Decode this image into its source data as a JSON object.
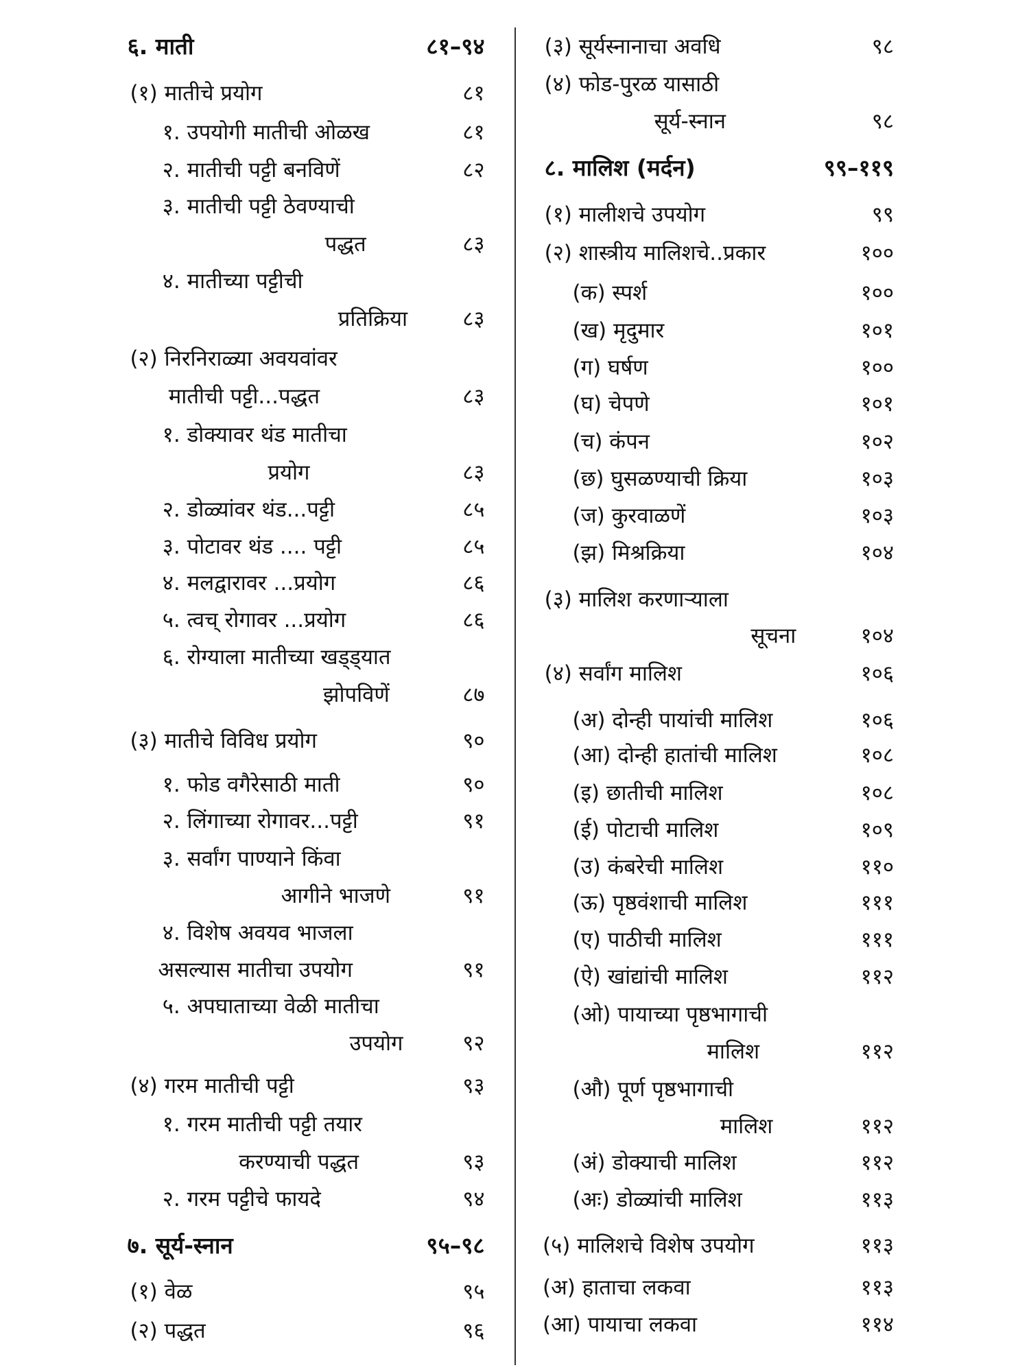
{
  "left_column": [
    {
      "text": "६. माती",
      "page": "८१–९४",
      "heading": true
    },
    {
      "text": "(१) मातीचे प्रयोग",
      "page": "८१"
    },
    {
      "text": "१. उपयोगी मातीची ओळख",
      "page": "८१"
    },
    {
      "text": "२. मातीची पट्टी बनविणें",
      "page": "८२"
    },
    {
      "text": "३. मातीची पट्टी ठेवण्याची",
      "page": ""
    },
    {
      "text": "पद्धत",
      "page": "८३"
    },
    {
      "text": "४. मातीच्या पट्टीची",
      "page": ""
    },
    {
      "text": "प्रतिक्रिया",
      "page": "८३"
    },
    {
      "text": "(२) निरनिराळ्या अवयवांवर",
      "page": ""
    },
    {
      "text": "मातीची पट्टी...पद्धत",
      "page": "८३"
    },
    {
      "text": "१. डोक्यावर थंड मातीचा",
      "page": ""
    },
    {
      "text": "प्रयोग",
      "page": "८३"
    },
    {
      "text": "२. डोळ्यांवर थंड...पट्टी",
      "page": "८५"
    },
    {
      "text": "३. पोटावर थंड .... पट्टी",
      "page": "८५"
    },
    {
      "text": "४. मलद्वारावर ...प्रयोग",
      "page": "८६"
    },
    {
      "text": "५. त्वच् रोगावर ...प्रयोग",
      "page": "८६"
    },
    {
      "text": "६. रोग्याला मातीच्या खड्ड्यात",
      "page": ""
    },
    {
      "text": "झोपविणें",
      "page": "८७"
    },
    {
      "text": "(३) मातीचे विविध प्रयोग",
      "page": "९०"
    },
    {
      "text": "१. फोड वगैरेसाठी माती",
      "page": "९०"
    },
    {
      "text": "२. लिंगाच्या रोगावर...पट्टी",
      "page": "९१"
    },
    {
      "text": "३. सर्वांग पाण्याने किंवा",
      "page": ""
    },
    {
      "text": "आगीने भाजणे",
      "page": "९१"
    },
    {
      "text": "४. विशेष अवयव भाजला",
      "page": ""
    },
    {
      "text": "असल्यास मातीचा उपयोग",
      "page": "९१"
    },
    {
      "text": "५. अपघाताच्या वेळी मातीचा",
      "page": ""
    },
    {
      "text": "उपयोग",
      "page": "९२"
    },
    {
      "text": "(४) गरम मातीची पट्टी",
      "page": "९३"
    },
    {
      "text": "१. गरम मातीची पट्टी तयार",
      "page": ""
    },
    {
      "text": "करण्याची पद्धत",
      "page": "९३"
    },
    {
      "text": "२. गरम पट्टीचे फायदे",
      "page": "९४"
    },
    {
      "text": "७. सूर्य-स्नान",
      "page": "९५–९८",
      "heading": true
    },
    {
      "text": "(१) वेळ",
      "page": "९५"
    },
    {
      "text": "(२) पद्धत",
      "page": "९६"
    }
  ],
  "right_column": [
    {
      "text": "(३) सूर्यस्नानाचा अवधि",
      "page": "९८"
    },
    {
      "text": "(४) फोड-पुरळ यासाठी",
      "page": ""
    },
    {
      "text": "सूर्य-स्नान",
      "page": "९८"
    },
    {
      "text": "८. मालिश (मर्दन)",
      "page": "९९–११९",
      "heading": true
    },
    {
      "text": "(१) मालीशचे उपयोग",
      "page": "९९"
    },
    {
      "text": "(२) शास्त्रीय मालिशचे..प्रकार",
      "page": "१००"
    },
    {
      "text": "(क) स्पर्श",
      "page": "१००"
    },
    {
      "text": "(ख) मृदुमार",
      "page": "१०१"
    },
    {
      "text": "(ग) घर्षण",
      "page": "१००"
    },
    {
      "text": "(घ) चेपणे",
      "page": "१०१"
    },
    {
      "text": "(च) कंपन",
      "page": "१०२"
    },
    {
      "text": "(छ) घुसळण्याची क्रिया",
      "page": "१०३"
    },
    {
      "text": "(ज) कुरवाळणें",
      "page": "१०३"
    },
    {
      "text": "(झ) मिश्रक्रिया",
      "page": "१०४"
    },
    {
      "text": "(३) मालिश करणाऱ्याला",
      "page": ""
    },
    {
      "text": "सूचना",
      "page": "१०४"
    },
    {
      "text": "(४) सर्वांग मालिश",
      "page": "१०६"
    },
    {
      "text": "(अ) दोन्ही पायांची मालिश",
      "page": "१०६"
    },
    {
      "text": "(आ) दोन्ही हातांची मालिश",
      "page": "१०८"
    },
    {
      "text": "(इ) छातीची मालिश",
      "page": "१०८"
    },
    {
      "text": "(ई) पोटाची मालिश",
      "page": "१०९"
    },
    {
      "text": "(उ) कंबरेची मालिश",
      "page": "११०"
    },
    {
      "text": "(ऊ) पृष्ठवंशाची मालिश",
      "page": "१११"
    },
    {
      "text": "(ए) पाठीची मालिश",
      "page": "१११"
    },
    {
      "text": "(ऐ) खांद्यांची मालिश",
      "page": "११२"
    },
    {
      "text": "(ओ) पायाच्या पृष्ठभागाची",
      "page": ""
    },
    {
      "text": "मालिश",
      "page": "११२"
    },
    {
      "text": "(औ) पूर्ण पृष्ठभागाची",
      "page": ""
    },
    {
      "text": "मालिश",
      "page": "११२"
    },
    {
      "text": "(अं) डोक्याची मालिश",
      "page": "११२"
    },
    {
      "text": "(अः) डोळ्यांची मालिश",
      "page": "११३"
    },
    {
      "text": "(५) मालिशचे विशेष उपयोग",
      "page": "११३"
    },
    {
      "text": "(अ) हाताचा लकवा",
      "page": "११३"
    },
    {
      "text": "(आ) पायाचा लकवा",
      "page": "११४"
    }
  ]
}
